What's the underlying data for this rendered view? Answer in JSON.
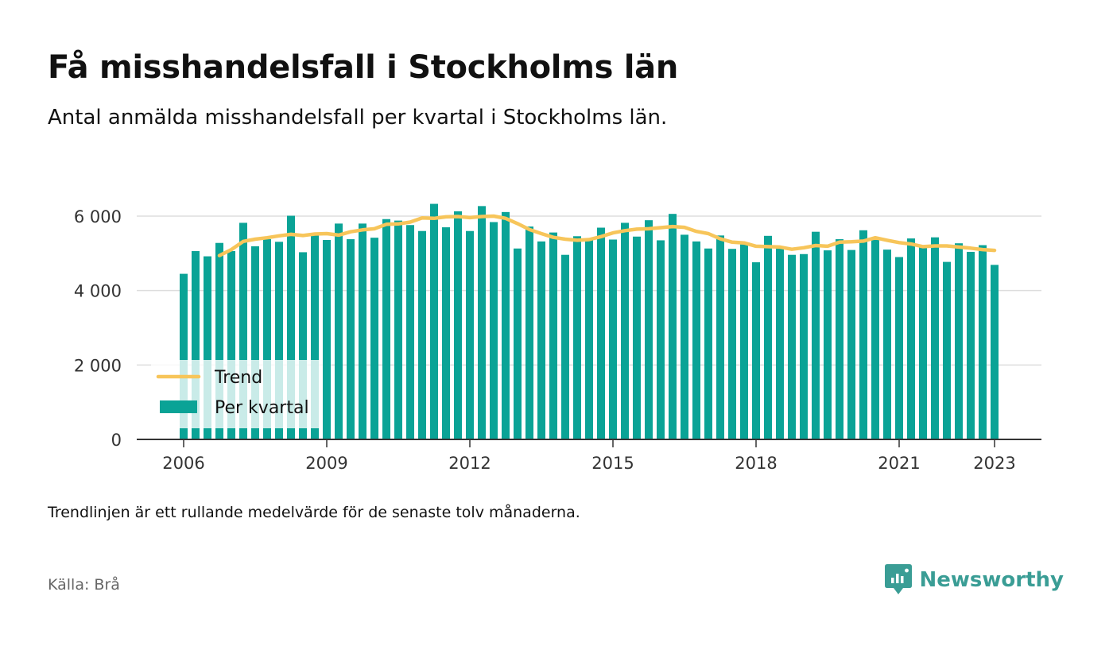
{
  "header": {
    "title": "Få misshandelsfall i Stockholms län",
    "subtitle": "Antal anmälda misshandelsfall per kvartal i Stockholms län."
  },
  "footer": {
    "note": "Trendlinjen är ett rullande medelvärde för de senaste tolv månaderna.",
    "source": "Källa: Brå",
    "brand": "Newsworthy"
  },
  "colors": {
    "bars": "#0aa396",
    "trend": "#f7c55a",
    "grid": "#dddddd",
    "axis": "#333333",
    "brand": "#3a9d95"
  },
  "chart_data": {
    "type": "bar",
    "title": "Få misshandelsfall i Stockholms län",
    "subtitle": "Antal anmälda misshandelsfall per kvartal i Stockholms län.",
    "xlabel": "",
    "ylabel": "",
    "ylim": [
      0,
      6000
    ],
    "yticks": [
      "0",
      "2 000",
      "4 000",
      "6 000"
    ],
    "xticks": [
      "2006",
      "2009",
      "2012",
      "2015",
      "2018",
      "2021",
      "2023"
    ],
    "grid": true,
    "legend": {
      "position": "bottom-left",
      "entries": [
        "Trend",
        "Per kvartal"
      ]
    },
    "categories": [
      "2006 Q1",
      "2006 Q2",
      "2006 Q3",
      "2006 Q4",
      "2007 Q1",
      "2007 Q2",
      "2007 Q3",
      "2007 Q4",
      "2008 Q1",
      "2008 Q2",
      "2008 Q3",
      "2008 Q4",
      "2009 Q1",
      "2009 Q2",
      "2009 Q3",
      "2009 Q4",
      "2010 Q1",
      "2010 Q2",
      "2010 Q3",
      "2010 Q4",
      "2011 Q1",
      "2011 Q2",
      "2011 Q3",
      "2011 Q4",
      "2012 Q1",
      "2012 Q2",
      "2012 Q3",
      "2012 Q4",
      "2013 Q1",
      "2013 Q2",
      "2013 Q3",
      "2013 Q4",
      "2014 Q1",
      "2014 Q2",
      "2014 Q3",
      "2014 Q4",
      "2015 Q1",
      "2015 Q2",
      "2015 Q3",
      "2015 Q4",
      "2016 Q1",
      "2016 Q2",
      "2016 Q3",
      "2016 Q4",
      "2017 Q1",
      "2017 Q2",
      "2017 Q3",
      "2017 Q4",
      "2018 Q1",
      "2018 Q2",
      "2018 Q3",
      "2018 Q4",
      "2019 Q1",
      "2019 Q2",
      "2019 Q3",
      "2019 Q4",
      "2020 Q1",
      "2020 Q2",
      "2020 Q3",
      "2020 Q4",
      "2021 Q1",
      "2021 Q2",
      "2021 Q3",
      "2021 Q4",
      "2022 Q1",
      "2022 Q2",
      "2022 Q3",
      "2022 Q4",
      "2023 Q1"
    ],
    "series": [
      {
        "name": "Per kvartal",
        "type": "bar",
        "values": [
          4450,
          5060,
          4920,
          5280,
          5060,
          5820,
          5190,
          5380,
          5310,
          6010,
          5030,
          5500,
          5360,
          5800,
          5380,
          5800,
          5420,
          5920,
          5880,
          5760,
          5600,
          6330,
          5700,
          6130,
          5600,
          6270,
          5840,
          6110,
          5130,
          5720,
          5320,
          5560,
          4960,
          5460,
          5380,
          5690,
          5370,
          5820,
          5450,
          5890,
          5350,
          6060,
          5500,
          5320,
          5130,
          5480,
          5120,
          5240,
          4760,
          5470,
          5180,
          4960,
          4980,
          5580,
          5080,
          5380,
          5090,
          5620,
          5400,
          5100,
          4900,
          5400,
          5170,
          5430,
          4770,
          5270,
          5040,
          5220,
          4690
        ]
      },
      {
        "name": "Trend",
        "type": "line",
        "values": [
          null,
          null,
          null,
          4940,
          5100,
          5320,
          5380,
          5420,
          5470,
          5510,
          5480,
          5520,
          5530,
          5490,
          5580,
          5630,
          5660,
          5780,
          5790,
          5840,
          5950,
          5940,
          5980,
          5990,
          5960,
          5990,
          6000,
          5940,
          5800,
          5640,
          5530,
          5430,
          5380,
          5350,
          5370,
          5450,
          5550,
          5610,
          5650,
          5660,
          5690,
          5720,
          5700,
          5590,
          5530,
          5390,
          5300,
          5280,
          5190,
          5180,
          5170,
          5110,
          5150,
          5210,
          5190,
          5300,
          5310,
          5330,
          5420,
          5350,
          5290,
          5250,
          5180,
          5200,
          5200,
          5170,
          5140,
          5100,
          5080
        ]
      }
    ]
  }
}
